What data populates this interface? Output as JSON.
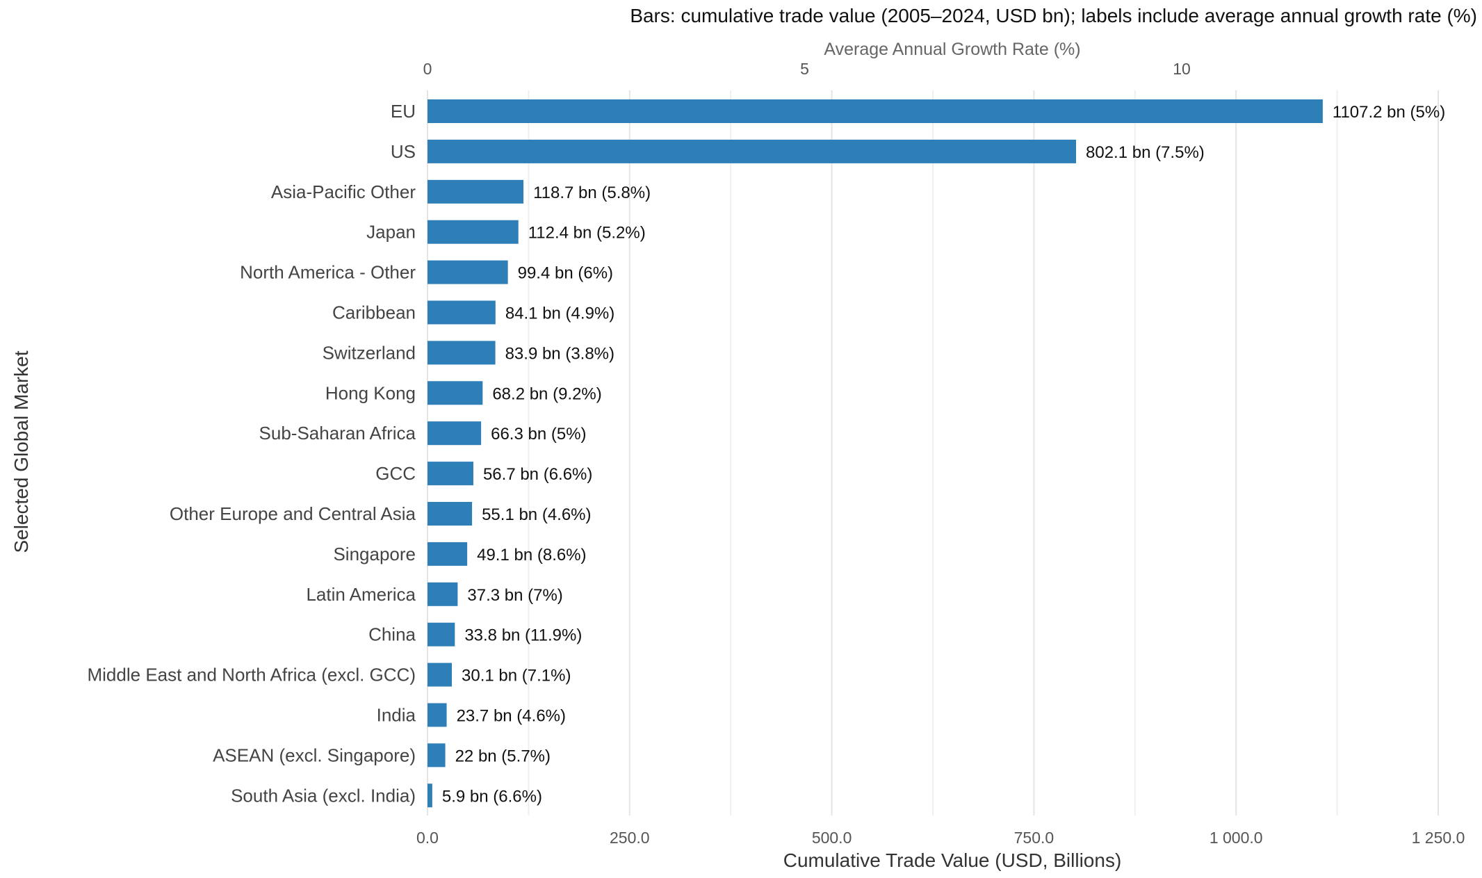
{
  "chart_data": {
    "type": "bar",
    "orientation": "horizontal",
    "title": "Bars: cumulative trade value (2005–2024, USD bn); labels include average annual growth rate (%)",
    "xlabel": "Cumulative Trade Value (USD, Billions)",
    "ylabel": "Selected Global Market",
    "secondary_xlabel": "Average Annual Growth Rate (%)",
    "xlim": [
      0,
      1250
    ],
    "secondary_xlim": [
      0,
      13.4
    ],
    "x_ticks": [
      "0.0",
      "250.0",
      "500.0",
      "750.0",
      "1 000.0",
      "1 250.0"
    ],
    "secondary_x_ticks": [
      "0",
      "5",
      "10"
    ],
    "grid": true,
    "bar_color": "#2E7EB8",
    "categories": [
      "EU",
      "US",
      "Asia-Pacific Other",
      "Japan",
      "North America - Other",
      "Caribbean",
      "Switzerland",
      "Hong Kong",
      "Sub-Saharan Africa",
      "GCC",
      "Other Europe and Central Asia",
      "Singapore",
      "Latin America",
      "China",
      "Middle East and North Africa (excl. GCC)",
      "India",
      "ASEAN (excl. Singapore)",
      "South Asia (excl. India)"
    ],
    "values": [
      1107.2,
      802.1,
      118.7,
      112.4,
      99.4,
      84.1,
      83.9,
      68.2,
      66.3,
      56.7,
      55.1,
      49.1,
      37.3,
      33.8,
      30.1,
      23.7,
      22,
      5.9
    ],
    "growth_rates": [
      5,
      7.5,
      5.8,
      5.2,
      6,
      4.9,
      3.8,
      9.2,
      5,
      6.6,
      4.6,
      8.6,
      7,
      11.9,
      7.1,
      4.6,
      5.7,
      6.6
    ],
    "data_labels": [
      "1107.2 bn (5%)",
      "802.1 bn (7.5%)",
      "118.7 bn (5.8%)",
      "112.4 bn (5.2%)",
      "99.4 bn (6%)",
      "84.1 bn (4.9%)",
      "83.9 bn (3.8%)",
      "68.2 bn (9.2%)",
      "66.3 bn (5%)",
      "56.7 bn (6.6%)",
      "55.1 bn (4.6%)",
      "49.1 bn (8.6%)",
      "37.3 bn (7%)",
      "33.8 bn (11.9%)",
      "30.1 bn (7.1%)",
      "23.7 bn (4.6%)",
      "22 bn (5.7%)",
      "5.9 bn (6.6%)"
    ]
  }
}
